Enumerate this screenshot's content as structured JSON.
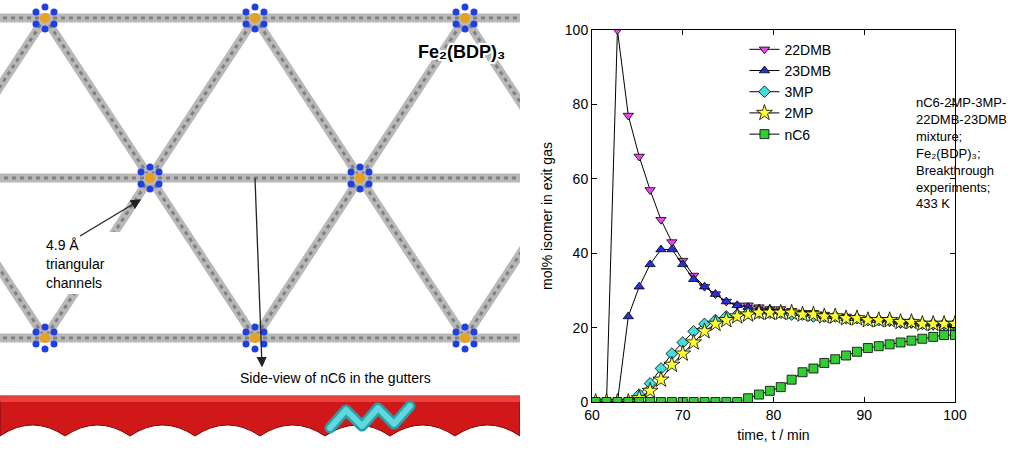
{
  "chart_data": {
    "type": "line",
    "xlabel": "time, t / min",
    "ylabel": "mol% isomer in exit gas",
    "annotation": [
      "nC6-2MP-3MP-",
      "22DMB-23DMB",
      "mixture;",
      "Fe₂(BDP)₃;",
      "Breakthrough",
      "experiments;",
      "433 K"
    ],
    "x": [
      60.4,
      61.6,
      62.8,
      64,
      65.2,
      66.4,
      67.6,
      68.8,
      70,
      71.2,
      72.4,
      73.6,
      74.8,
      76,
      77.2,
      78.4,
      79.6,
      80.8,
      82,
      83.2,
      84.4,
      85.6,
      86.8,
      88,
      89.2,
      90.4,
      91.6,
      92.8,
      94,
      95.2,
      96.4,
      97.6,
      98.8,
      100
    ],
    "series": [
      {
        "name": "22DMB",
        "color": "#ee44ee",
        "marker": "triangle-down",
        "line_style": "solid",
        "values": [
          0,
          0,
          100,
          77,
          66,
          57,
          49,
          43,
          38,
          34,
          31,
          29,
          27,
          26,
          26,
          25.5,
          25,
          25,
          24.5,
          24,
          24,
          23.5,
          23,
          23,
          22.5,
          22,
          22,
          21.5,
          21,
          21,
          21,
          20.5,
          20.5,
          20
        ]
      },
      {
        "name": "23DMB",
        "color": "#2233dd",
        "marker": "triangle-up",
        "line_style": "solid",
        "values": [
          0,
          0,
          0,
          23,
          31,
          37,
          41,
          41,
          37,
          33,
          31,
          29,
          27,
          26,
          25.5,
          25,
          25,
          24.5,
          24,
          24,
          23.5,
          23,
          23,
          22.5,
          22.5,
          22,
          22,
          21.5,
          21.5,
          21,
          21,
          21,
          20.5,
          20.5
        ]
      },
      {
        "name": "3MP",
        "color": "#44dddd",
        "marker": "diamond",
        "line_style": "solid",
        "values": [
          0,
          0,
          0,
          0,
          2,
          5,
          9,
          13,
          16,
          19,
          21,
          22,
          23,
          23.5,
          24,
          24,
          24,
          24,
          23.5,
          23.5,
          23,
          23,
          23,
          22.5,
          22.5,
          22,
          22,
          22,
          21.5,
          21.5,
          21,
          21,
          21,
          21
        ]
      },
      {
        "name": "2MP",
        "color": "#ffff33",
        "marker": "star",
        "line_style": "solid",
        "values": [
          0,
          0,
          0,
          0,
          1,
          3,
          6,
          10,
          13,
          16,
          19,
          21,
          22,
          23,
          23.5,
          24,
          24,
          24,
          24,
          23.5,
          23.5,
          23,
          23,
          22.5,
          22.5,
          22,
          22,
          22,
          21.5,
          21.5,
          21,
          21,
          21,
          21
        ]
      },
      {
        "name": "nC6",
        "color": "#33cc33",
        "marker": "square",
        "line_style": "solid",
        "values": [
          0,
          0,
          0,
          0,
          0,
          0,
          0,
          0,
          0,
          0,
          0,
          0,
          0,
          0,
          1,
          2,
          3,
          4,
          6,
          8,
          9,
          10.5,
          11.5,
          12.5,
          13.5,
          14.5,
          15,
          15.5,
          16,
          16.5,
          17,
          17.5,
          18,
          18
        ]
      }
    ],
    "xlim": [
      60,
      100
    ],
    "xticks": [
      60,
      70,
      80,
      90,
      100
    ],
    "ylim": [
      0,
      100
    ],
    "yticks": [
      0,
      20,
      40,
      60,
      80,
      100
    ],
    "grid": false,
    "legend": "upper center"
  },
  "diagram": {
    "title": "Fe₂(BDP)₃",
    "channel_label": [
      "4.9 Å",
      "triangular",
      "channels"
    ],
    "side_view_label": "Side-view of nC6 in the gutters"
  }
}
